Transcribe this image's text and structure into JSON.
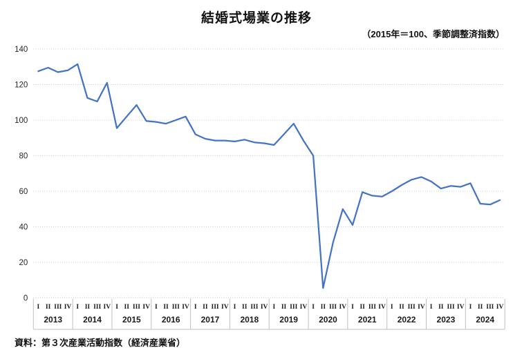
{
  "page": {
    "title": "結婚式場業の推移",
    "subtitle": "（2015年＝100、季節調整済指数）",
    "source_note": "資料：第３次産業活動指数（経済産業省）"
  },
  "colors": {
    "line": "#4472C4",
    "grid": "#c9c9c9",
    "axis": "#bfbfbf",
    "text": "#262626"
  },
  "chart_data": {
    "type": "line",
    "title": "結婚式場業の推移",
    "subtitle": "（2015年＝100、季節調整済指数）",
    "xlabel": "",
    "ylabel": "",
    "ylim": [
      0,
      140
    ],
    "ytick_step": 20,
    "grid": true,
    "legend_position": "none",
    "years": [
      "2013",
      "2014",
      "2015",
      "2016",
      "2017",
      "2018",
      "2019",
      "2020",
      "2021",
      "2022",
      "2023",
      "2024"
    ],
    "quarter_labels": [
      "I",
      "II",
      "III",
      "IV"
    ],
    "series": [
      {
        "name": "結婚式場業の推移（2015年＝100、季節調整済指数）",
        "values": [
          127.5,
          129.5,
          127,
          128,
          131.5,
          112.5,
          110.5,
          121,
          95.5,
          102,
          108.5,
          99.5,
          99,
          98,
          100,
          102,
          92,
          89.5,
          88.5,
          88.5,
          88,
          89,
          87.5,
          87,
          86,
          92,
          98,
          88.5,
          80,
          5.5,
          31,
          50,
          41,
          59.5,
          57.5,
          57,
          60,
          63.5,
          66.5,
          68,
          65.5,
          61.5,
          63,
          62.5,
          64.5,
          53,
          52.5,
          55
        ]
      }
    ]
  }
}
